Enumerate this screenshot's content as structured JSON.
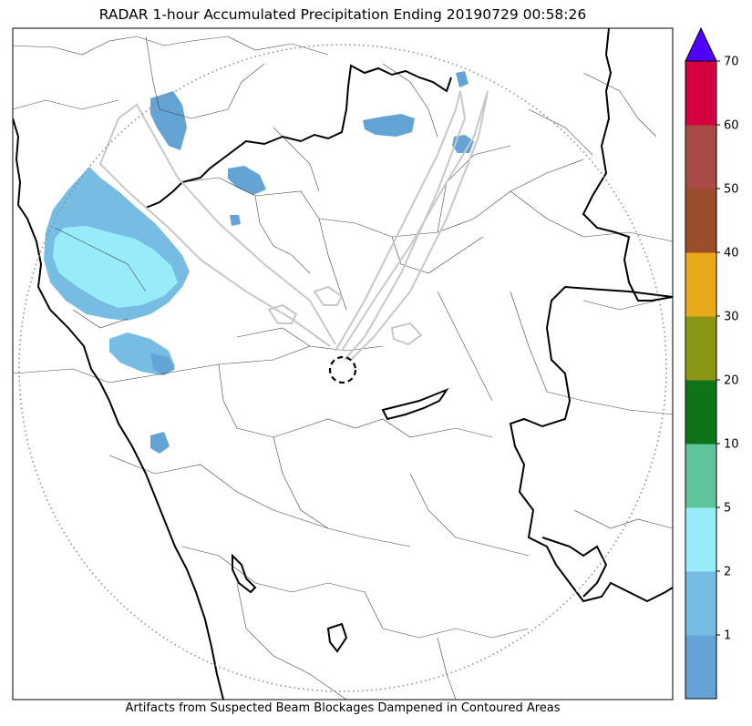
{
  "title": "RADAR 1-hour Accumulated Precipitation Ending 20190729 00:58:26",
  "footer": "Artifacts from Suspected Beam Blockages Dampened in Contoured Areas",
  "colorbar": {
    "extend": "max",
    "levels": [
      {
        "color": "#63a3d6",
        "label": ""
      },
      {
        "color": "#77bde3",
        "label": "1"
      },
      {
        "color": "#98ecfa",
        "label": "2"
      },
      {
        "color": "#5fc49a",
        "label": "5"
      },
      {
        "color": "#0e731a",
        "label": "10"
      },
      {
        "color": "#8b9614",
        "label": "20"
      },
      {
        "color": "#e9a919",
        "label": "30"
      },
      {
        "color": "#9a4e29",
        "label": "40"
      },
      {
        "color": "#a84a45",
        "label": "50"
      },
      {
        "color": "#d4003f",
        "label": "60"
      }
    ],
    "top_label": "70",
    "over_color": "#5000ff"
  },
  "map": {
    "features": [
      "coastline",
      "state-boundaries",
      "district-boundaries",
      "radar-range-ring",
      "radar-site-marker",
      "beam-blockage-contours",
      "precipitation-field"
    ],
    "range_ring_style": "dotted gray",
    "radar_marker_style": "dashed black circle"
  }
}
